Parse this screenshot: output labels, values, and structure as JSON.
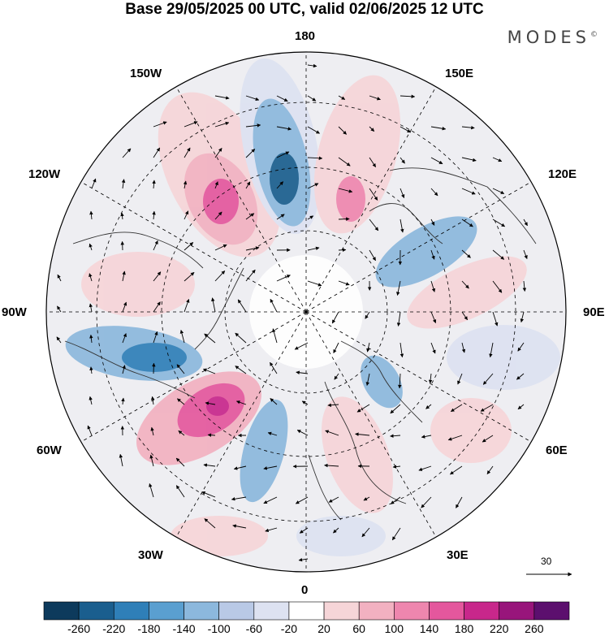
{
  "title": "Base 29/05/2025 00 UTC, valid 02/06/2025 12 UTC",
  "brand": "MODES",
  "brand_mark": "©",
  "longitude_labels": {
    "lon_180": "180",
    "lon_150E": "150E",
    "lon_120E": "120E",
    "lon_90E": "90E",
    "lon_60E": "60E",
    "lon_30E": "30E",
    "lon_0": "0",
    "lon_30W": "30W",
    "lon_60W": "60W",
    "lon_90W": "90W",
    "lon_120W": "120W",
    "lon_150W": "150W"
  },
  "vector_scale": {
    "label": "30"
  },
  "colorbar": {
    "colors": [
      "#0d3a5c",
      "#1a5e8e",
      "#2f7fb8",
      "#5a9fd0",
      "#8cb8dd",
      "#b9c9e6",
      "#dde2f1",
      "#ffffff",
      "#f6d5d8",
      "#f2b1c1",
      "#ee86ae",
      "#e4579d",
      "#c8278b",
      "#98157b",
      "#5c0f6e"
    ],
    "ticks": [
      "-260",
      "-220",
      "-180",
      "-140",
      "-100",
      "-60",
      "-20",
      "20",
      "60",
      "100",
      "140",
      "180",
      "220",
      "260"
    ]
  }
}
